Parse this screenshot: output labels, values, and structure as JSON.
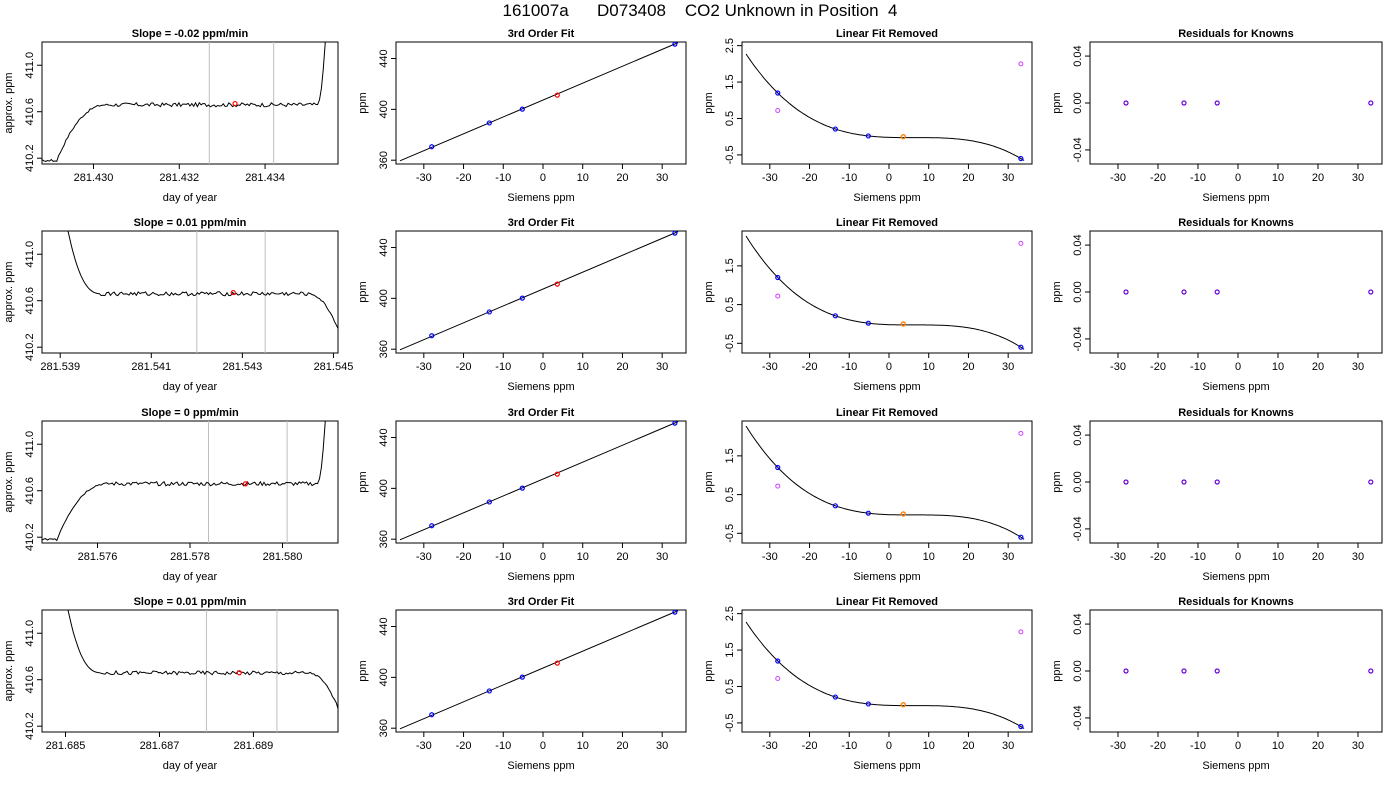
{
  "page": {
    "title": "161007a      D073408    CO2 Unknown in Position  4"
  },
  "colors": {
    "line": "#000000",
    "known": "#0000ff",
    "unknown": "#ff0000",
    "unknown_linear": "#ff8000",
    "raw": "#cc44ff",
    "vline": "#bebebe"
  },
  "chart_data": [
    {
      "type": "line",
      "row": 0,
      "col": 0,
      "title": "Slope =  -0.02  ppm/min",
      "xlabel": "day of year",
      "ylabel": "approx. ppm",
      "xlim": [
        281.4288,
        281.4357
      ],
      "ylim": [
        410.15,
        411.2
      ],
      "xticks": [
        281.43,
        281.432,
        281.434
      ],
      "xtick_labels": [
        "281.430",
        "281.432",
        "281.434"
      ],
      "yticks": [
        410.2,
        410.6,
        411.0
      ],
      "ytick_labels": [
        "410.2",
        "410.6",
        "411.0"
      ],
      "trace": "rise",
      "vlines": [
        281.4327,
        281.4342
      ],
      "marker": {
        "x": 281.4333,
        "y": 410.67
      }
    },
    {
      "type": "scatter",
      "row": 0,
      "col": 1,
      "title": "3rd Order Fit",
      "xlabel": "Siemens ppm",
      "ylabel": "ppm",
      "xlim": [
        -37,
        36
      ],
      "ylim": [
        357,
        453
      ],
      "xticks": [
        -30,
        -20,
        -10,
        0,
        10,
        20,
        30
      ],
      "xtick_labels": [
        "-30",
        "-20",
        "-10",
        "0",
        "10",
        "20",
        "30"
      ],
      "yticks": [
        360,
        400,
        440
      ],
      "ytick_labels": [
        "360",
        "400",
        "440"
      ],
      "fit_line": [
        [
          -36,
          359.5
        ],
        [
          34,
          452.5
        ]
      ],
      "knowns": [
        [
          -28,
          370.6
        ],
        [
          -13.5,
          389.3
        ],
        [
          -5.2,
          400.2
        ],
        [
          33.2,
          451.3
        ]
      ],
      "unknown": [
        3.6,
        411.2
      ]
    },
    {
      "type": "scatter",
      "row": 0,
      "col": 2,
      "title": "Linear Fit Removed",
      "xlabel": "Siemens ppm",
      "ylabel": "ppm",
      "xlim": [
        -37,
        36
      ],
      "ylim": [
        -0.75,
        2.6
      ],
      "xticks": [
        -30,
        -20,
        -10,
        0,
        10,
        20,
        30
      ],
      "xtick_labels": [
        "-30",
        "-20",
        "-10",
        "0",
        "10",
        "20",
        "30"
      ],
      "yticks": [
        -0.5,
        0.5,
        1.5,
        2.5
      ],
      "ytick_labels": [
        "-0.5",
        "0.5",
        "1.5",
        "2.5"
      ],
      "curve_coef": [
        0.0,
        -0.022,
        0.00105,
        5e-07
      ],
      "curve_xrange": [
        -36,
        34
      ],
      "knowns": [
        [
          -28,
          1.2
        ],
        [
          -13.5,
          0.21
        ],
        [
          -5.2,
          0.02
        ],
        [
          33.2,
          -0.6
        ]
      ],
      "raw": [
        [
          -28,
          0.72
        ],
        [
          33.2,
          2.0
        ]
      ],
      "unknown": [
        3.6,
        0.0
      ]
    },
    {
      "type": "scatter",
      "row": 0,
      "col": 3,
      "title": "Residuals for Knowns",
      "xlabel": "Siemens ppm",
      "ylabel": "ppm",
      "xlim": [
        -37,
        36
      ],
      "ylim": [
        -0.052,
        0.052
      ],
      "xticks": [
        -30,
        -20,
        -10,
        0,
        10,
        20,
        30
      ],
      "xtick_labels": [
        "-30",
        "-20",
        "-10",
        "0",
        "10",
        "20",
        "30"
      ],
      "yticks": [
        -0.04,
        0.0,
        0.04
      ],
      "ytick_labels": [
        "-0.04",
        "0.00",
        "0.04"
      ],
      "residuals": [
        [
          -28,
          0
        ],
        [
          -13.5,
          0
        ],
        [
          -5.2,
          0
        ],
        [
          33.2,
          0
        ]
      ]
    },
    {
      "type": "line",
      "row": 1,
      "col": 0,
      "title": "Slope =  0.01  ppm/min",
      "xlabel": "day of year",
      "ylabel": "approx. ppm",
      "xlim": [
        281.5386,
        281.5451
      ],
      "ylim": [
        410.15,
        411.2
      ],
      "xticks": [
        281.539,
        281.541,
        281.543,
        281.545
      ],
      "xtick_labels": [
        "281.539",
        "281.541",
        "281.543",
        "281.545"
      ],
      "yticks": [
        410.2,
        410.6,
        411.0
      ],
      "ytick_labels": [
        "410.2",
        "410.6",
        "411.0"
      ],
      "trace": "fall",
      "vlines": [
        281.542,
        281.5435
      ],
      "marker": {
        "x": 281.5428,
        "y": 410.67
      }
    },
    {
      "type": "scatter",
      "row": 1,
      "col": 1,
      "title": "3rd Order Fit",
      "xlabel": "Siemens ppm",
      "ylabel": "ppm",
      "xlim": [
        -37,
        36
      ],
      "ylim": [
        357,
        453
      ],
      "xticks": [
        -30,
        -20,
        -10,
        0,
        10,
        20,
        30
      ],
      "xtick_labels": [
        "-30",
        "-20",
        "-10",
        "0",
        "10",
        "20",
        "30"
      ],
      "yticks": [
        360,
        400,
        440
      ],
      "ytick_labels": [
        "360",
        "400",
        "440"
      ],
      "fit_line": [
        [
          -36,
          359.5
        ],
        [
          34,
          452.5
        ]
      ],
      "knowns": [
        [
          -28,
          370.6
        ],
        [
          -13.5,
          389.3
        ],
        [
          -5.2,
          400.2
        ],
        [
          33.2,
          451.3
        ]
      ],
      "unknown": [
        3.6,
        411.2
      ]
    },
    {
      "type": "scatter",
      "row": 1,
      "col": 2,
      "title": "Linear Fit Removed",
      "xlabel": "Siemens ppm",
      "ylabel": "ppm",
      "xlim": [
        -37,
        36
      ],
      "ylim": [
        -0.75,
        2.4
      ],
      "xticks": [
        -30,
        -20,
        -10,
        0,
        10,
        20,
        30
      ],
      "xtick_labels": [
        "-30",
        "-20",
        "-10",
        "0",
        "10",
        "20",
        "30"
      ],
      "yticks": [
        -0.5,
        0.5,
        1.5
      ],
      "ytick_labels": [
        "-0.5",
        "0.5",
        "1.5"
      ],
      "curve_coef": [
        0.0,
        -0.022,
        0.00105,
        5e-07
      ],
      "curve_xrange": [
        -36,
        34
      ],
      "knowns": [
        [
          -28,
          1.2
        ],
        [
          -13.5,
          0.21
        ],
        [
          -5.2,
          0.02
        ],
        [
          33.2,
          -0.6
        ]
      ],
      "raw": [
        [
          -28,
          0.72
        ],
        [
          33.2,
          2.08
        ]
      ],
      "unknown": [
        3.6,
        0.0
      ]
    },
    {
      "type": "scatter",
      "row": 1,
      "col": 3,
      "title": "Residuals for Knowns",
      "xlabel": "Siemens ppm",
      "ylabel": "ppm",
      "xlim": [
        -37,
        36
      ],
      "ylim": [
        -0.052,
        0.052
      ],
      "xticks": [
        -30,
        -20,
        -10,
        0,
        10,
        20,
        30
      ],
      "xtick_labels": [
        "-30",
        "-20",
        "-10",
        "0",
        "10",
        "20",
        "30"
      ],
      "yticks": [
        -0.04,
        0.0,
        0.04
      ],
      "ytick_labels": [
        "-0.04",
        "0.00",
        "0.04"
      ],
      "residuals": [
        [
          -28,
          0
        ],
        [
          -13.5,
          0
        ],
        [
          -5.2,
          0
        ],
        [
          33.2,
          0
        ]
      ]
    },
    {
      "type": "line",
      "row": 2,
      "col": 0,
      "title": "Slope =  0  ppm/min",
      "xlabel": "day of year",
      "ylabel": "approx. ppm",
      "xlim": [
        281.5748,
        281.5812
      ],
      "ylim": [
        410.15,
        411.2
      ],
      "xticks": [
        281.576,
        281.578,
        281.58
      ],
      "xtick_labels": [
        "281.576",
        "281.578",
        "281.580"
      ],
      "yticks": [
        410.2,
        410.6,
        411.0
      ],
      "ytick_labels": [
        "410.2",
        "410.6",
        "411.0"
      ],
      "trace": "rise",
      "vlines": [
        281.5784,
        281.5801
      ],
      "marker": {
        "x": 281.5792,
        "y": 410.66
      }
    },
    {
      "type": "scatter",
      "row": 2,
      "col": 1,
      "title": "3rd Order Fit",
      "xlabel": "Siemens ppm",
      "ylabel": "ppm",
      "xlim": [
        -37,
        36
      ],
      "ylim": [
        357,
        453
      ],
      "xticks": [
        -30,
        -20,
        -10,
        0,
        10,
        20,
        30
      ],
      "xtick_labels": [
        "-30",
        "-20",
        "-10",
        "0",
        "10",
        "20",
        "30"
      ],
      "yticks": [
        360,
        400,
        440
      ],
      "ytick_labels": [
        "360",
        "400",
        "440"
      ],
      "fit_line": [
        [
          -36,
          359.5
        ],
        [
          34,
          452.5
        ]
      ],
      "knowns": [
        [
          -28,
          370.6
        ],
        [
          -13.5,
          389.3
        ],
        [
          -5.2,
          400.2
        ],
        [
          33.2,
          451.3
        ]
      ],
      "unknown": [
        3.6,
        411.2
      ]
    },
    {
      "type": "scatter",
      "row": 2,
      "col": 2,
      "title": "Linear Fit Removed",
      "xlabel": "Siemens ppm",
      "ylabel": "ppm",
      "xlim": [
        -37,
        36
      ],
      "ylim": [
        -0.75,
        2.4
      ],
      "xticks": [
        -30,
        -20,
        -10,
        0,
        10,
        20,
        30
      ],
      "xtick_labels": [
        "-30",
        "-20",
        "-10",
        "0",
        "10",
        "20",
        "30"
      ],
      "yticks": [
        -0.5,
        0.5,
        1.5
      ],
      "ytick_labels": [
        "-0.5",
        "0.5",
        "1.5"
      ],
      "curve_coef": [
        0.0,
        -0.022,
        0.00105,
        5e-07
      ],
      "curve_xrange": [
        -36,
        34
      ],
      "knowns": [
        [
          -28,
          1.2
        ],
        [
          -13.5,
          0.21
        ],
        [
          -5.2,
          0.02
        ],
        [
          33.2,
          -0.6
        ]
      ],
      "raw": [
        [
          -28,
          0.72
        ],
        [
          33.2,
          2.08
        ]
      ],
      "unknown": [
        3.6,
        0.0
      ]
    },
    {
      "type": "scatter",
      "row": 2,
      "col": 3,
      "title": "Residuals for Knowns",
      "xlabel": "Siemens ppm",
      "ylabel": "ppm",
      "xlim": [
        -37,
        36
      ],
      "ylim": [
        -0.052,
        0.052
      ],
      "xticks": [
        -30,
        -20,
        -10,
        0,
        10,
        20,
        30
      ],
      "xtick_labels": [
        "-30",
        "-20",
        "-10",
        "0",
        "10",
        "20",
        "30"
      ],
      "yticks": [
        -0.04,
        0.0,
        0.04
      ],
      "ytick_labels": [
        "-0.04",
        "0.00",
        "0.04"
      ],
      "residuals": [
        [
          -28,
          0
        ],
        [
          -13.5,
          0
        ],
        [
          -5.2,
          0
        ],
        [
          33.2,
          0
        ]
      ]
    },
    {
      "type": "line",
      "row": 3,
      "col": 0,
      "title": "Slope =  0.01  ppm/min",
      "xlabel": "day of year",
      "ylabel": "approx. ppm",
      "xlim": [
        281.6845,
        281.6908
      ],
      "ylim": [
        410.15,
        411.2
      ],
      "xticks": [
        281.685,
        281.687,
        281.689
      ],
      "xtick_labels": [
        "281.685",
        "281.687",
        "281.689"
      ],
      "yticks": [
        410.2,
        410.6,
        411.0
      ],
      "ytick_labels": [
        "410.2",
        "410.6",
        "411.0"
      ],
      "trace": "fall",
      "vlines": [
        281.688,
        281.6895
      ],
      "marker": {
        "x": 281.6887,
        "y": 410.66
      }
    },
    {
      "type": "scatter",
      "row": 3,
      "col": 1,
      "title": "3rd Order Fit",
      "xlabel": "Siemens ppm",
      "ylabel": "ppm",
      "xlim": [
        -37,
        36
      ],
      "ylim": [
        357,
        453
      ],
      "xticks": [
        -30,
        -20,
        -10,
        0,
        10,
        20,
        30
      ],
      "xtick_labels": [
        "-30",
        "-20",
        "-10",
        "0",
        "10",
        "20",
        "30"
      ],
      "yticks": [
        360,
        400,
        440
      ],
      "ytick_labels": [
        "360",
        "400",
        "440"
      ],
      "fit_line": [
        [
          -36,
          359.5
        ],
        [
          34,
          452.5
        ]
      ],
      "knowns": [
        [
          -28,
          370.6
        ],
        [
          -13.5,
          389.3
        ],
        [
          -5.2,
          400.2
        ],
        [
          33.2,
          451.3
        ]
      ],
      "unknown": [
        3.6,
        411.2
      ]
    },
    {
      "type": "scatter",
      "row": 3,
      "col": 2,
      "title": "Linear Fit Removed",
      "xlabel": "Siemens ppm",
      "ylabel": "ppm",
      "xlim": [
        -37,
        36
      ],
      "ylim": [
        -0.75,
        2.6
      ],
      "xticks": [
        -30,
        -20,
        -10,
        0,
        10,
        20,
        30
      ],
      "xtick_labels": [
        "-30",
        "-20",
        "-10",
        "0",
        "10",
        "20",
        "30"
      ],
      "yticks": [
        -0.5,
        0.5,
        1.5,
        2.5
      ],
      "ytick_labels": [
        "-0.5",
        "0.5",
        "1.5",
        "2.5"
      ],
      "curve_coef": [
        0.0,
        -0.022,
        0.00105,
        5e-07
      ],
      "curve_xrange": [
        -36,
        34
      ],
      "knowns": [
        [
          -28,
          1.2
        ],
        [
          -13.5,
          0.21
        ],
        [
          -5.2,
          0.02
        ],
        [
          33.2,
          -0.6
        ]
      ],
      "raw": [
        [
          -28,
          0.72
        ],
        [
          33.2,
          2.0
        ]
      ],
      "unknown": [
        3.6,
        0.0
      ]
    },
    {
      "type": "scatter",
      "row": 3,
      "col": 3,
      "title": "Residuals for Knowns",
      "xlabel": "Siemens ppm",
      "ylabel": "ppm",
      "xlim": [
        -37,
        36
      ],
      "ylim": [
        -0.052,
        0.052
      ],
      "xticks": [
        -30,
        -20,
        -10,
        0,
        10,
        20,
        30
      ],
      "xtick_labels": [
        "-30",
        "-20",
        "-10",
        "0",
        "10",
        "20",
        "30"
      ],
      "yticks": [
        -0.04,
        0.0,
        0.04
      ],
      "ytick_labels": [
        "-0.04",
        "0.00",
        "0.04"
      ],
      "residuals": [
        [
          -28,
          0
        ],
        [
          -13.5,
          0
        ],
        [
          -5.2,
          0
        ],
        [
          33.2,
          0
        ]
      ]
    }
  ]
}
